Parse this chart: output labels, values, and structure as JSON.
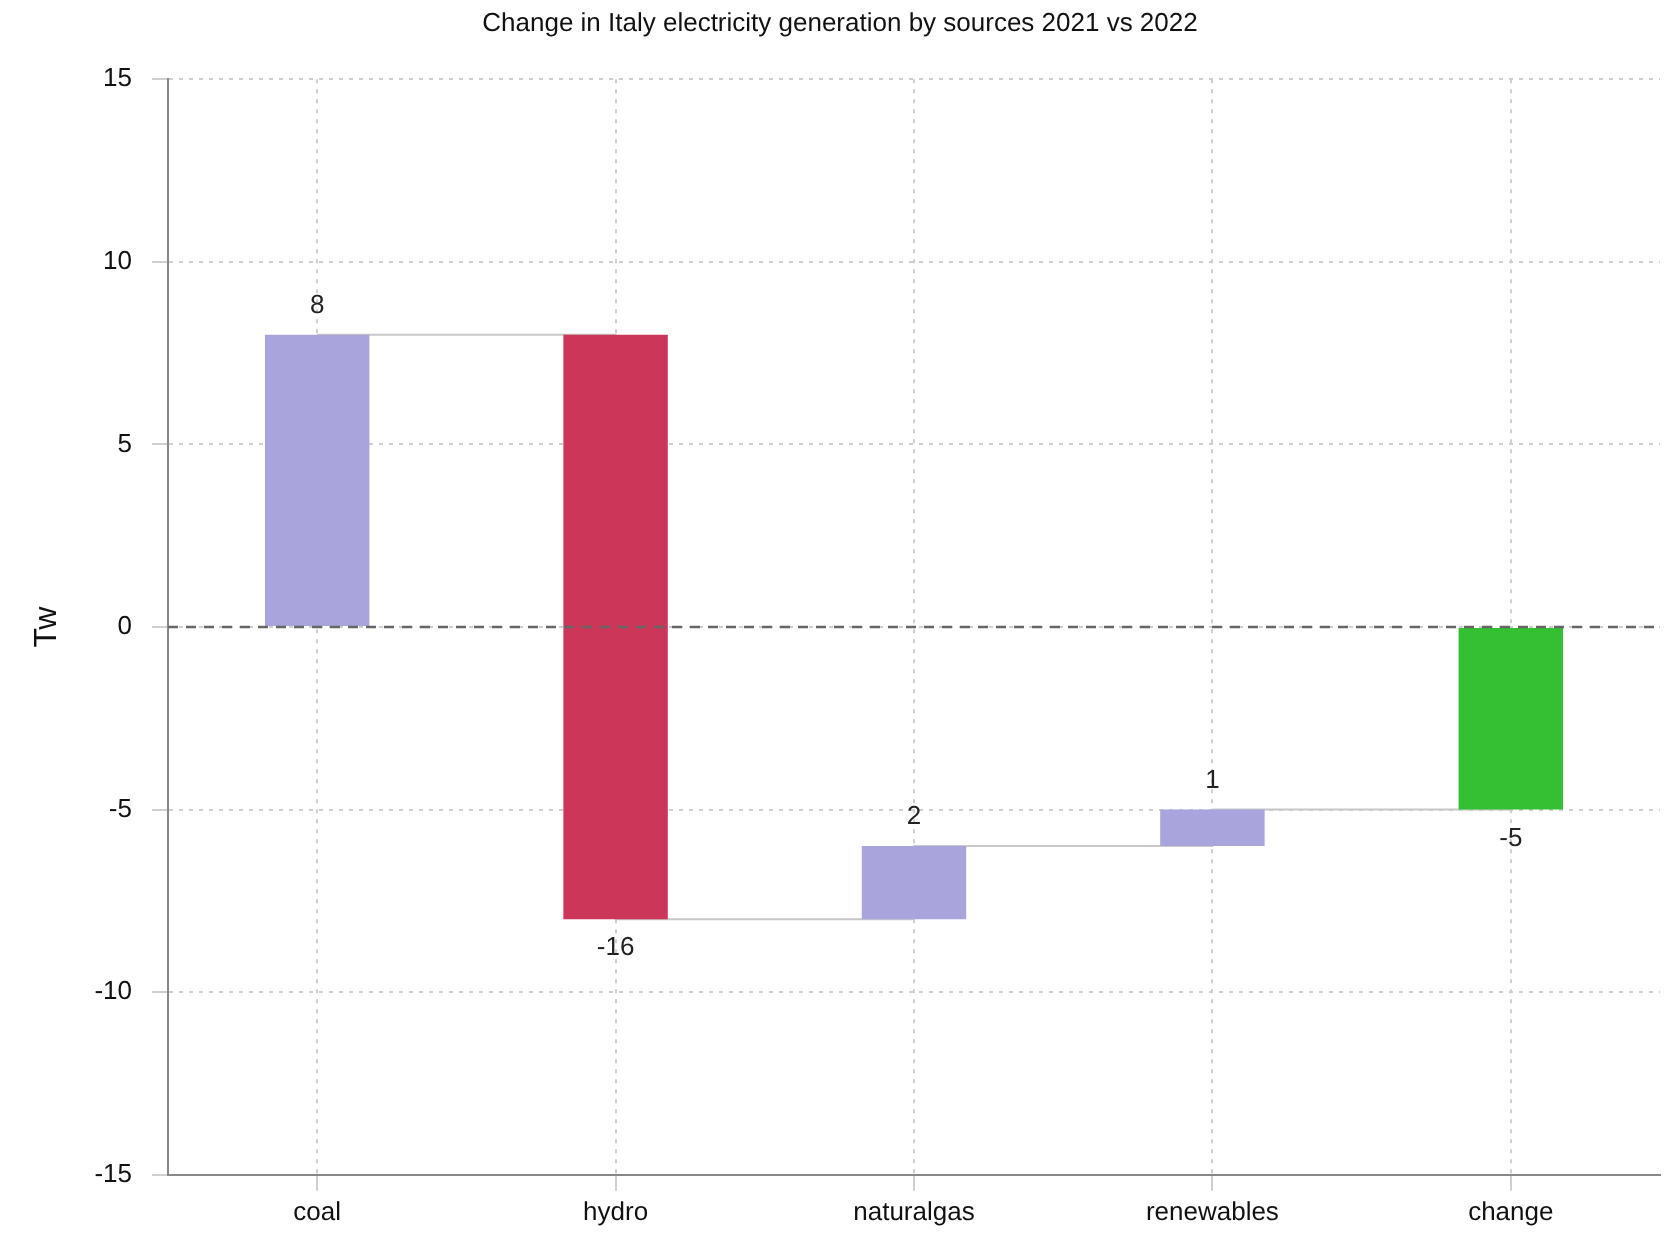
{
  "chart_data": {
    "type": "bar",
    "title": "Change in Italy electricity generation by sources 2021 vs 2022",
    "ylabel": "Tw",
    "categories": [
      "coal",
      "hydro",
      "naturalgas",
      "renewables",
      "change"
    ],
    "series": [
      {
        "values": [
          8,
          -16,
          2,
          1,
          -5
        ],
        "base": [
          0,
          8,
          -8,
          -6,
          0
        ],
        "colors": [
          "#a9a4dc",
          "#cc3658",
          "#a9a4dc",
          "#a9a4dc",
          "#33c033"
        ],
        "value_labels": [
          "8",
          "-16",
          "2",
          "1",
          "-5"
        ]
      },
      {
        "type": "step",
        "values": [
          8,
          -8,
          -6,
          -5,
          -5
        ],
        "color": "#c8c8c8"
      }
    ],
    "ylim": [
      -15,
      15
    ],
    "yticks": [
      -15,
      -10,
      -5,
      0,
      5,
      10,
      15
    ],
    "ref_lines": [
      {
        "axis": "y",
        "value": 0,
        "color": "#666666",
        "line_style": "dashed"
      }
    ],
    "grid": true,
    "legend": false
  }
}
